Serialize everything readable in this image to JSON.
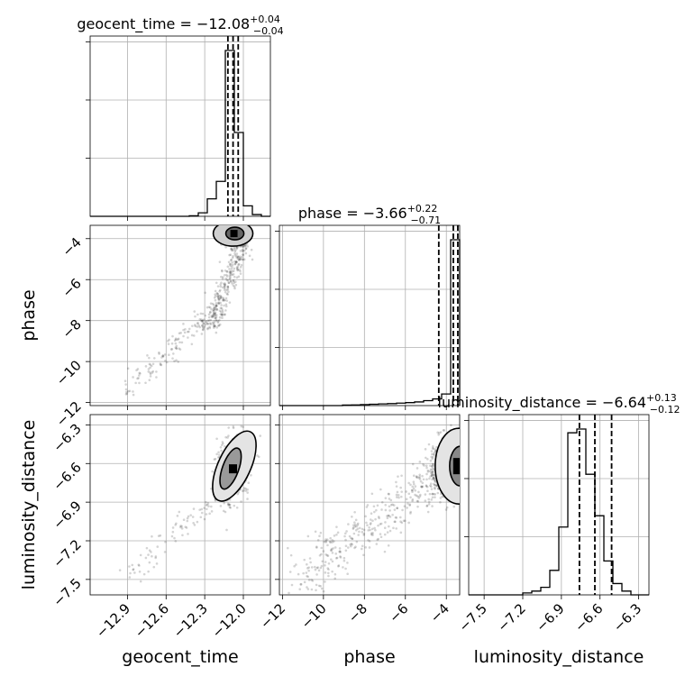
{
  "chart_data": {
    "type": "corner",
    "parameters": [
      {
        "key": "geocent_time",
        "label": "geocent_time",
        "ticks": [
          "−12.9",
          "−12.6",
          "−12.3",
          "−12.0"
        ],
        "tick_values": [
          -12.9,
          -12.6,
          -12.3,
          -12.0
        ],
        "range": [
          -13.19,
          -11.79
        ]
      },
      {
        "key": "phase",
        "label": "phase",
        "ticks": [
          "−12",
          "−10",
          "−8",
          "−6",
          "−4"
        ],
        "tick_values": [
          -12,
          -10,
          -8,
          -6,
          -4
        ],
        "range": [
          -12.15,
          -3.35
        ]
      },
      {
        "key": "luminosity_distance",
        "label": "luminosity_distance",
        "ticks": [
          "−7.5",
          "−7.2",
          "−6.9",
          "−6.6",
          "−6.3"
        ],
        "tick_values": [
          -7.5,
          -7.2,
          -6.9,
          -6.6,
          -6.3
        ],
        "range": [
          -7.62,
          -6.22
        ]
      }
    ],
    "titles": [
      {
        "name": "geocent_time",
        "median": "−12.08",
        "plus": "+0.04",
        "minus": "−0.04"
      },
      {
        "name": "phase",
        "median": "−3.66",
        "plus": "+0.22",
        "minus": "−0.71"
      },
      {
        "name": "luminosity_distance",
        "median": "−6.64",
        "plus": "+0.13",
        "minus": "−0.12"
      }
    ],
    "quantiles": [
      [
        -12.12,
        -12.08,
        -12.04
      ],
      [
        -4.37,
        -3.66,
        -3.44
      ],
      [
        -6.76,
        -6.64,
        -6.51
      ]
    ],
    "histograms": [
      {
        "edges": [
          -13.19,
          -13.12,
          -13.05,
          -12.98,
          -12.91,
          -12.84,
          -12.77,
          -12.7,
          -12.63,
          -12.56,
          -12.49,
          -12.42,
          -12.35,
          -12.28,
          -12.21,
          -12.14,
          -12.07,
          -12.0,
          -11.93,
          -11.86,
          -11.79
        ],
        "counts": [
          0,
          0,
          0,
          0,
          0,
          0,
          0,
          0,
          0,
          0,
          0,
          0.3,
          2,
          10,
          20,
          95,
          48,
          6,
          1,
          0
        ]
      },
      {
        "edges": [
          -12.15,
          -11.71,
          -11.27,
          -10.83,
          -10.39,
          -9.95,
          -9.51,
          -9.07,
          -8.63,
          -8.19,
          -7.75,
          -7.31,
          -6.87,
          -6.43,
          -5.99,
          -5.55,
          -5.11,
          -4.67,
          -4.23,
          -3.79,
          -3.35
        ],
        "counts": [
          0,
          0,
          0,
          0,
          0,
          0,
          0,
          0.3,
          0.4,
          0.6,
          0.8,
          1,
          1.2,
          1.5,
          1.8,
          2.2,
          3,
          4,
          7,
          100
        ]
      },
      {
        "edges": [
          -7.62,
          -7.55,
          -7.48,
          -7.41,
          -7.34,
          -7.27,
          -7.2,
          -7.13,
          -7.06,
          -6.99,
          -6.92,
          -6.85,
          -6.78,
          -6.71,
          -6.64,
          -6.57,
          -6.5,
          -6.43,
          -6.36,
          -6.29,
          -6.22
        ],
        "counts": [
          0,
          0,
          0,
          0,
          0,
          0,
          1,
          2,
          4,
          13,
          36,
          86,
          88,
          64,
          42,
          18,
          6,
          2,
          0,
          0
        ]
      }
    ],
    "grid": true,
    "contour_levels": 2
  }
}
